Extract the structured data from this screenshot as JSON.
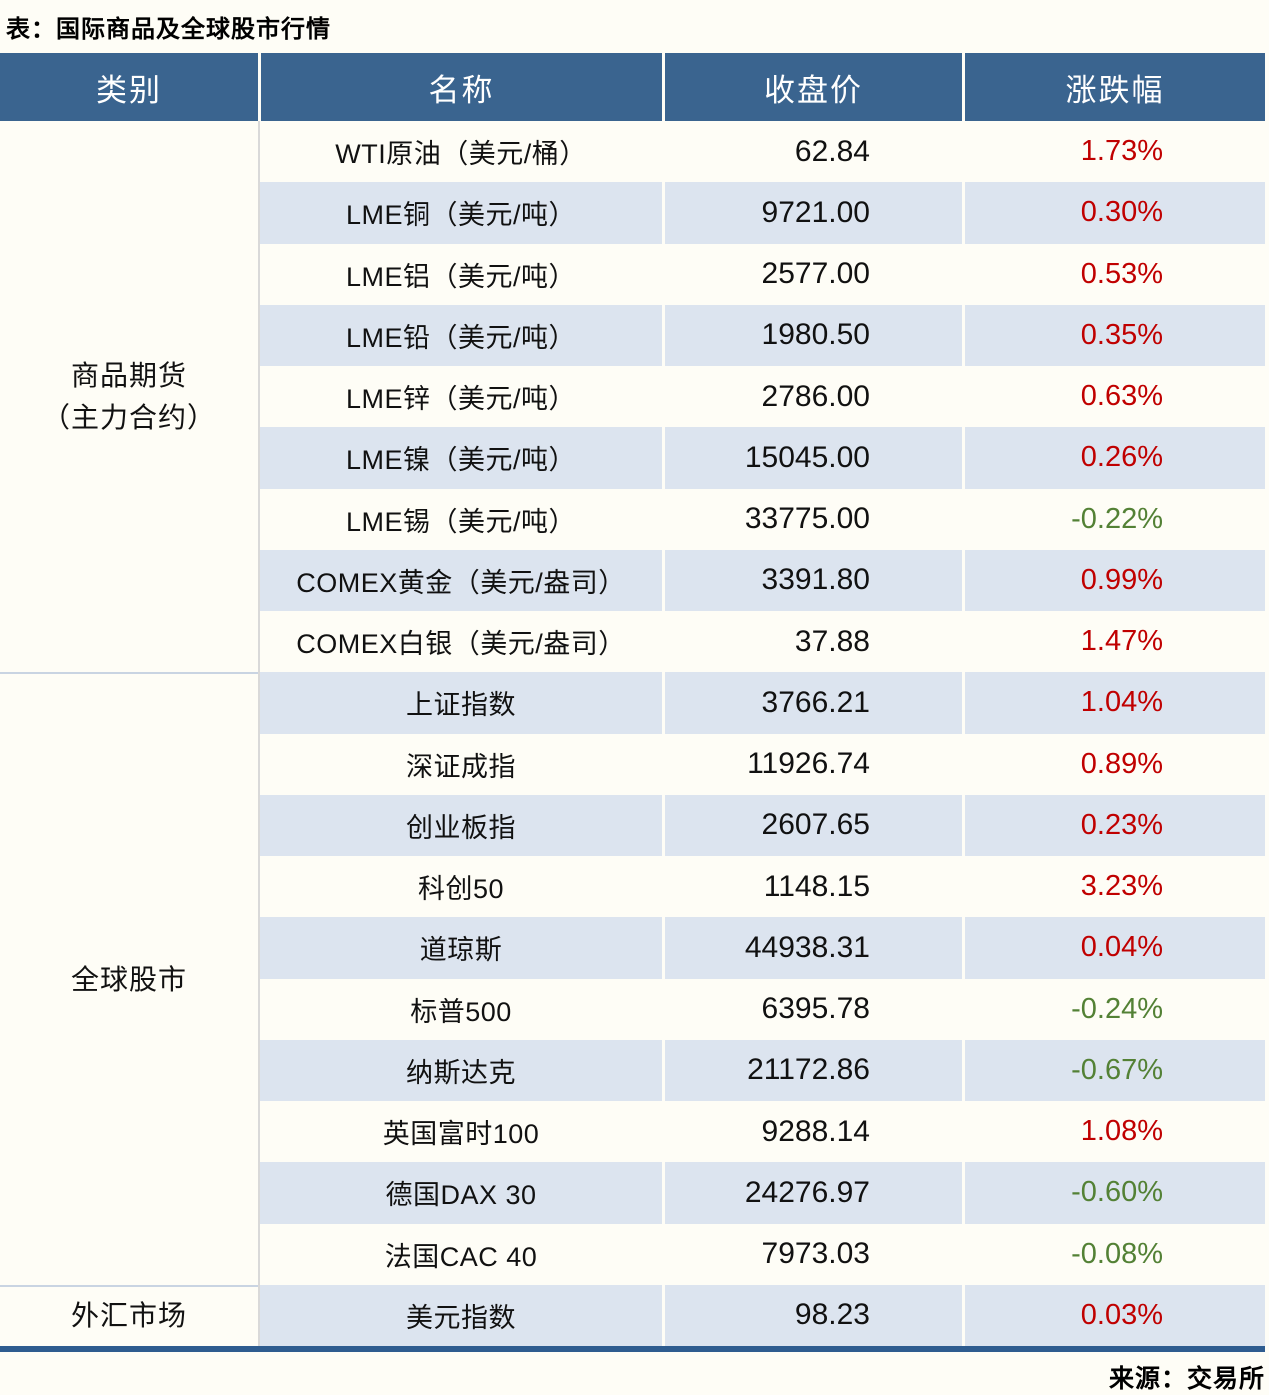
{
  "title": "表：国际商品及全球股市行情",
  "source_note": "来源：交易所",
  "colors": {
    "header_bg": "#3a648f",
    "row_stripe": "#dce4ef",
    "positive_red": "#c00000",
    "negative_green": "#538135",
    "bottom_border": "#2e5c8f"
  },
  "chart_data": {
    "type": "table",
    "title": "表：国际商品及全球股市行情",
    "columns": [
      "类别",
      "名称",
      "收盘价",
      "涨跌幅"
    ],
    "source": "来源：交易所",
    "color_coding": {
      "up": "red (#c00000)",
      "down": "green (#538135)"
    },
    "groups": [
      {
        "category_lines": [
          "商品期货",
          "（主力合约）"
        ],
        "rows": [
          {
            "name": "WTI原油（美元/桶）",
            "close": "62.84",
            "change": "1.73%"
          },
          {
            "name": "LME铜（美元/吨）",
            "close": "9721.00",
            "change": "0.30%"
          },
          {
            "name": "LME铝（美元/吨）",
            "close": "2577.00",
            "change": "0.53%"
          },
          {
            "name": "LME铅（美元/吨）",
            "close": "1980.50",
            "change": "0.35%"
          },
          {
            "name": "LME锌（美元/吨）",
            "close": "2786.00",
            "change": "0.63%"
          },
          {
            "name": "LME镍（美元/吨）",
            "close": "15045.00",
            "change": "0.26%"
          },
          {
            "name": "LME锡（美元/吨）",
            "close": "33775.00",
            "change": "-0.22%"
          },
          {
            "name": "COMEX黄金（美元/盎司）",
            "close": "3391.80",
            "change": "0.99%"
          },
          {
            "name": "COMEX白银（美元/盎司）",
            "close": "37.88",
            "change": "1.47%"
          }
        ]
      },
      {
        "category_lines": [
          "全球股市"
        ],
        "rows": [
          {
            "name": "上证指数",
            "close": "3766.21",
            "change": "1.04%"
          },
          {
            "name": "深证成指",
            "close": "11926.74",
            "change": "0.89%"
          },
          {
            "name": "创业板指",
            "close": "2607.65",
            "change": "0.23%"
          },
          {
            "name": "科创50",
            "close": "1148.15",
            "change": "3.23%"
          },
          {
            "name": "道琼斯",
            "close": "44938.31",
            "change": "0.04%"
          },
          {
            "name": "标普500",
            "close": "6395.78",
            "change": "-0.24%"
          },
          {
            "name": "纳斯达克",
            "close": "21172.86",
            "change": "-0.67%"
          },
          {
            "name": "英国富时100",
            "close": "9288.14",
            "change": "1.08%"
          },
          {
            "name": "德国DAX 30",
            "close": "24276.97",
            "change": "-0.60%"
          },
          {
            "name": "法国CAC 40",
            "close": "7973.03",
            "change": "-0.08%"
          }
        ]
      },
      {
        "category_lines": [
          "外汇市场"
        ],
        "rows": [
          {
            "name": "美元指数",
            "close": "98.23",
            "change": "0.03%"
          }
        ]
      }
    ]
  }
}
